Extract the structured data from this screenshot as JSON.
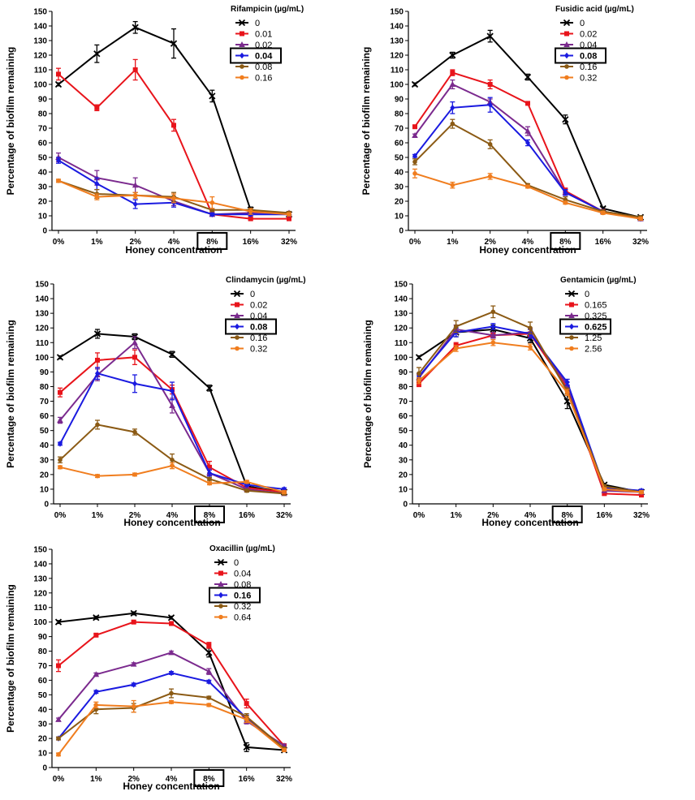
{
  "chart_data": [
    {
      "type": "line",
      "title": "",
      "legend_title": "Rifampicin (µg/mL)",
      "xlabel": "Honey concentration",
      "ylabel": "Percentage of biofilm remaining",
      "categories": [
        "0%",
        "1%",
        "2%",
        "4%",
        "8%",
        "16%",
        "32%"
      ],
      "highlighted_category": "8%",
      "highlighted_series": "0.04",
      "ylim": [
        0,
        150
      ],
      "yticks": [
        0,
        10,
        20,
        30,
        40,
        50,
        60,
        70,
        80,
        90,
        100,
        110,
        120,
        130,
        140,
        150
      ],
      "series": [
        {
          "name": "0",
          "color": "#000000",
          "marker": "x",
          "values": [
            100,
            121,
            139,
            128,
            92,
            14,
            11
          ],
          "errors": [
            1,
            6,
            4,
            10,
            4,
            2,
            1
          ]
        },
        {
          "name": "0.01",
          "color": "#e8141b",
          "marker": "square",
          "values": [
            107,
            84,
            110,
            72,
            11,
            8,
            8
          ],
          "errors": [
            4,
            2,
            7,
            4,
            1,
            1,
            1
          ]
        },
        {
          "name": "0.02",
          "color": "#7b2a8e",
          "marker": "triangle",
          "values": [
            50,
            36,
            31,
            20,
            11,
            12,
            12
          ],
          "errors": [
            3,
            5,
            5,
            3,
            1,
            1,
            1
          ]
        },
        {
          "name": "0.04",
          "color": "#1a1ae0",
          "marker": "diamond",
          "values": [
            48,
            32,
            18,
            19,
            11,
            11,
            11
          ],
          "errors": [
            2,
            4,
            3,
            3,
            1,
            1,
            1
          ]
        },
        {
          "name": "0.08",
          "color": "#8b5a14",
          "marker": "circle",
          "values": [
            34,
            25,
            24,
            23,
            14,
            14,
            12
          ],
          "errors": [
            1,
            3,
            2,
            3,
            1,
            1,
            1
          ]
        },
        {
          "name": "0.16",
          "color": "#f07d1e",
          "marker": "circle",
          "values": [
            34,
            23,
            24,
            22,
            19,
            13,
            11
          ],
          "errors": [
            1,
            2,
            2,
            3,
            4,
            2,
            1
          ]
        }
      ]
    },
    {
      "type": "line",
      "title": "",
      "legend_title": "Fusidic acid (µg/mL)",
      "xlabel": "Honey concentration",
      "ylabel": "Percentage of biofilm remaining",
      "categories": [
        "0%",
        "1%",
        "2%",
        "4%",
        "8%",
        "16%",
        "32%"
      ],
      "highlighted_category": "8%",
      "highlighted_series": "0.08",
      "ylim": [
        0,
        150
      ],
      "yticks": [
        0,
        10,
        20,
        30,
        40,
        50,
        60,
        70,
        80,
        90,
        100,
        110,
        120,
        130,
        140,
        150
      ],
      "series": [
        {
          "name": "0",
          "color": "#000000",
          "marker": "x",
          "values": [
            100,
            120,
            133,
            105,
            76,
            15,
            9
          ],
          "errors": [
            1,
            2,
            4,
            2,
            3,
            1,
            1
          ]
        },
        {
          "name": "0.02",
          "color": "#e8141b",
          "marker": "square",
          "values": [
            71,
            108,
            100,
            87,
            27,
            13,
            8
          ],
          "errors": [
            1,
            2,
            3,
            1,
            2,
            1,
            1
          ]
        },
        {
          "name": "0.04",
          "color": "#7b2a8e",
          "marker": "triangle",
          "values": [
            65,
            100,
            88,
            68,
            26,
            13,
            8
          ],
          "errors": [
            1,
            3,
            2,
            3,
            2,
            1,
            1
          ]
        },
        {
          "name": "0.08",
          "color": "#1a1ae0",
          "marker": "diamond",
          "values": [
            51,
            84,
            86,
            60,
            26,
            13,
            8
          ],
          "errors": [
            1,
            4,
            5,
            2,
            2,
            1,
            1
          ]
        },
        {
          "name": "0.16",
          "color": "#8b5a14",
          "marker": "circle",
          "values": [
            47,
            73,
            59,
            31,
            21,
            13,
            9
          ],
          "errors": [
            2,
            3,
            3,
            1,
            2,
            1,
            1
          ]
        },
        {
          "name": "0.32",
          "color": "#f07d1e",
          "marker": "circle",
          "values": [
            39,
            31,
            37,
            30,
            19,
            12,
            8
          ],
          "errors": [
            3,
            2,
            2,
            1,
            1,
            1,
            1
          ]
        }
      ]
    },
    {
      "type": "line",
      "title": "",
      "legend_title": "Clindamycin (µg/mL)",
      "xlabel": "Honey concentration",
      "ylabel": "Percentage of biofilm remaining",
      "categories": [
        "0%",
        "1%",
        "2%",
        "4%",
        "8%",
        "16%",
        "32%"
      ],
      "highlighted_category": "8%",
      "highlighted_series": "0.08",
      "ylim": [
        0,
        150
      ],
      "yticks": [
        0,
        10,
        20,
        30,
        40,
        50,
        60,
        70,
        80,
        90,
        100,
        110,
        120,
        130,
        140,
        150
      ],
      "series": [
        {
          "name": "0",
          "color": "#000000",
          "marker": "x",
          "values": [
            100,
            116,
            114,
            102,
            79,
            12,
            8
          ],
          "errors": [
            1,
            3,
            2,
            2,
            2,
            1,
            1
          ]
        },
        {
          "name": "0.02",
          "color": "#e8141b",
          "marker": "square",
          "values": [
            76,
            98,
            100,
            78,
            25,
            11,
            8
          ],
          "errors": [
            3,
            5,
            5,
            3,
            4,
            1,
            1
          ]
        },
        {
          "name": "0.04",
          "color": "#7b2a8e",
          "marker": "triangle",
          "values": [
            57,
            88,
            110,
            67,
            21,
            10,
            7
          ],
          "errors": [
            2,
            4,
            4,
            5,
            3,
            1,
            1
          ]
        },
        {
          "name": "0.08",
          "color": "#1a1ae0",
          "marker": "diamond",
          "values": [
            41,
            89,
            82,
            77,
            21,
            13,
            10
          ],
          "errors": [
            1,
            4,
            6,
            6,
            2,
            1,
            1
          ]
        },
        {
          "name": "0.16",
          "color": "#8b5a14",
          "marker": "circle",
          "values": [
            30,
            54,
            49,
            30,
            17,
            9,
            7
          ],
          "errors": [
            2,
            3,
            2,
            4,
            1,
            1,
            1
          ]
        },
        {
          "name": "0.32",
          "color": "#f07d1e",
          "marker": "circle",
          "values": [
            25,
            19,
            20,
            26,
            14,
            15,
            8
          ],
          "errors": [
            1,
            1,
            1,
            2,
            1,
            1,
            1
          ]
        }
      ]
    },
    {
      "type": "line",
      "title": "",
      "legend_title": "Gentamicin (µg/mL)",
      "xlabel": "Honey concentration",
      "ylabel": "Percentage of biofilm remaining",
      "categories": [
        "0%",
        "1%",
        "2%",
        "4%",
        "8%",
        "16%",
        "32%"
      ],
      "highlighted_category": "8%",
      "highlighted_series": "0.625",
      "ylim": [
        0,
        150
      ],
      "yticks": [
        0,
        10,
        20,
        30,
        40,
        50,
        60,
        70,
        80,
        90,
        100,
        110,
        120,
        130,
        140,
        150
      ],
      "series": [
        {
          "name": "0",
          "color": "#000000",
          "marker": "x",
          "values": [
            100,
            117,
            119,
            113,
            70,
            13,
            8
          ],
          "errors": [
            1,
            3,
            3,
            3,
            5,
            1,
            1
          ]
        },
        {
          "name": "0.165",
          "color": "#e8141b",
          "marker": "square",
          "values": [
            82,
            108,
            115,
            116,
            79,
            7,
            6
          ],
          "errors": [
            2,
            2,
            2,
            3,
            2,
            1,
            1
          ]
        },
        {
          "name": "0.325",
          "color": "#7b2a8e",
          "marker": "triangle",
          "values": [
            86,
            119,
            115,
            117,
            81,
            9,
            8
          ],
          "errors": [
            2,
            3,
            2,
            3,
            2,
            1,
            1
          ]
        },
        {
          "name": "0.625",
          "color": "#1a1ae0",
          "marker": "diamond",
          "values": [
            87,
            117,
            121,
            116,
            83,
            11,
            9
          ],
          "errors": [
            2,
            3,
            2,
            3,
            2,
            1,
            1
          ]
        },
        {
          "name": "1.25",
          "color": "#8b5a14",
          "marker": "circle",
          "values": [
            89,
            121,
            131,
            120,
            77,
            12,
            8
          ],
          "errors": [
            4,
            4,
            4,
            4,
            2,
            1,
            1
          ]
        },
        {
          "name": "2.56",
          "color": "#f07d1e",
          "marker": "circle",
          "values": [
            84,
            106,
            110,
            107,
            76,
            10,
            8
          ],
          "errors": [
            2,
            2,
            2,
            2,
            2,
            1,
            1
          ]
        }
      ]
    },
    {
      "type": "line",
      "title": "",
      "legend_title": "Oxacillin (µg/mL)",
      "xlabel": "Honey concentration",
      "ylabel": "Percentage of biofilm remaining",
      "categories": [
        "0%",
        "1%",
        "2%",
        "4%",
        "8%",
        "16%",
        "32%"
      ],
      "highlighted_category": "8%",
      "highlighted_series": "0.16",
      "ylim": [
        0,
        150
      ],
      "yticks": [
        0,
        10,
        20,
        30,
        40,
        50,
        60,
        70,
        80,
        90,
        100,
        110,
        120,
        130,
        140,
        150
      ],
      "series": [
        {
          "name": "0",
          "color": "#000000",
          "marker": "x",
          "values": [
            100,
            103,
            106,
            103,
            79,
            14,
            12
          ],
          "errors": [
            1,
            1,
            1,
            1,
            3,
            3,
            1
          ]
        },
        {
          "name": "0.04",
          "color": "#e8141b",
          "marker": "square",
          "values": [
            70,
            91,
            100,
            99,
            84,
            44,
            15
          ],
          "errors": [
            4,
            1,
            1,
            1,
            2,
            3,
            1
          ]
        },
        {
          "name": "0.08",
          "color": "#7b2a8e",
          "marker": "triangle",
          "values": [
            33,
            64,
            71,
            79,
            66,
            32,
            15
          ],
          "errors": [
            1,
            1,
            1,
            1,
            2,
            2,
            1
          ]
        },
        {
          "name": "0.16",
          "color": "#1a1ae0",
          "marker": "diamond",
          "values": [
            20,
            52,
            57,
            65,
            59,
            34,
            13
          ],
          "errors": [
            1,
            1,
            1,
            1,
            1,
            2,
            1
          ]
        },
        {
          "name": "0.32",
          "color": "#8b5a14",
          "marker": "circle",
          "values": [
            20,
            40,
            41,
            51,
            48,
            35,
            13
          ],
          "errors": [
            1,
            3,
            3,
            3,
            1,
            2,
            1
          ]
        },
        {
          "name": "0.64",
          "color": "#f07d1e",
          "marker": "circle",
          "values": [
            9,
            43,
            42,
            45,
            43,
            33,
            12
          ],
          "errors": [
            1,
            2,
            4,
            1,
            1,
            2,
            1
          ]
        }
      ]
    }
  ]
}
